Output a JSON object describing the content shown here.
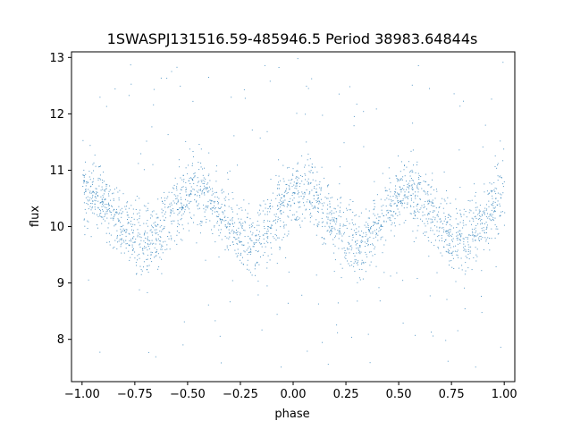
{
  "chart_data": {
    "type": "scatter",
    "title": "1SWASPJ131516.59-485946.5 Period 38983.64844s",
    "xlabel": "phase",
    "ylabel": "flux",
    "xlim": [
      -1.05,
      1.05
    ],
    "ylim": [
      7.25,
      13.1
    ],
    "xticks": [
      -1.0,
      -0.75,
      -0.5,
      -0.25,
      0.0,
      0.25,
      0.5,
      0.75,
      1.0
    ],
    "xtick_labels": [
      "−1.00",
      "−0.75",
      "−0.50",
      "−0.25",
      "0.00",
      "0.25",
      "0.50",
      "0.75",
      "1.00"
    ],
    "yticks": [
      8,
      9,
      10,
      11,
      12,
      13
    ],
    "ytick_labels": [
      "8",
      "9",
      "10",
      "11",
      "12",
      "13"
    ],
    "grid": false,
    "point_color": "#1f77b4",
    "series": [
      {
        "x_range": [
          -1.0,
          1.0
        ],
        "trend": {
          "phase": [
            -1.0,
            -0.95,
            -0.9,
            -0.85,
            -0.8,
            -0.75,
            -0.7,
            -0.65,
            -0.6,
            -0.55,
            -0.5,
            -0.45,
            -0.4,
            -0.35,
            -0.3,
            -0.25,
            -0.2,
            -0.15,
            -0.1,
            -0.05,
            0.0,
            0.05,
            0.1,
            0.15,
            0.2,
            0.25,
            0.3,
            0.35,
            0.4,
            0.45,
            0.5,
            0.55,
            0.6,
            0.65,
            0.7,
            0.75,
            0.8,
            0.85,
            0.9,
            0.95,
            1.0
          ],
          "flux": [
            10.55,
            10.6,
            10.45,
            10.25,
            10.0,
            9.8,
            9.7,
            9.85,
            10.1,
            10.35,
            10.55,
            10.65,
            10.5,
            10.25,
            10.0,
            9.8,
            9.7,
            9.85,
            10.1,
            10.35,
            10.55,
            10.65,
            10.5,
            10.25,
            10.0,
            9.8,
            9.7,
            9.85,
            10.1,
            10.35,
            10.55,
            10.65,
            10.5,
            10.25,
            10.0,
            9.8,
            9.7,
            9.85,
            10.1,
            10.35,
            10.55
          ]
        },
        "band_scatter": 0.3,
        "outlier_fraction": 0.06,
        "outlier_flux_range": [
          7.5,
          13.0
        ]
      }
    ]
  }
}
